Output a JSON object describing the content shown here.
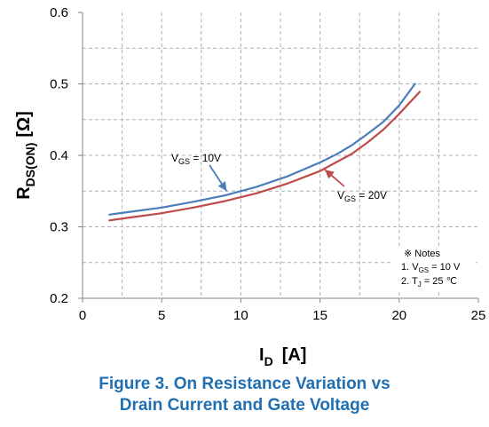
{
  "chart_data": {
    "type": "line",
    "xlim": [
      0,
      25
    ],
    "ylim": [
      0.2,
      0.6
    ],
    "x_ticks": [
      "0",
      "5",
      "10",
      "15",
      "20",
      "25"
    ],
    "y_ticks": [
      "0.2",
      "0.3",
      "0.4",
      "0.5",
      "0.6"
    ],
    "grid": true,
    "xlabel": {
      "main": "I",
      "sub": "D",
      "unit": "[A]"
    },
    "ylabel": {
      "main": "R",
      "sub": "DS(ON)",
      "unit": "[Ω]"
    },
    "series": [
      {
        "name": "VGS = 10V",
        "color": "#4a7ebb",
        "x": [
          1.7,
          3,
          5,
          7,
          9,
          11,
          13,
          15,
          16,
          17,
          18,
          19,
          20,
          21
        ],
        "y": [
          0.317,
          0.321,
          0.327,
          0.335,
          0.344,
          0.356,
          0.371,
          0.39,
          0.401,
          0.414,
          0.43,
          0.447,
          0.47,
          0.5
        ]
      },
      {
        "name": "VGS = 20V",
        "color": "#be4b48",
        "x": [
          1.7,
          3,
          5,
          7,
          9,
          11,
          13,
          15,
          16,
          17,
          18,
          19,
          20,
          21.3
        ],
        "y": [
          0.309,
          0.313,
          0.319,
          0.327,
          0.336,
          0.347,
          0.361,
          0.378,
          0.39,
          0.402,
          0.418,
          0.436,
          0.458,
          0.489
        ]
      }
    ],
    "annotations": [
      {
        "main": "V",
        "sub": "GS",
        "rest": " = 10V",
        "color": "#4a7ebb"
      },
      {
        "main": "V",
        "sub": "GS",
        "rest": " = 20V",
        "color": "#be4b48"
      }
    ],
    "notes": {
      "title": "※ Notes",
      "items": [
        {
          "prefix": "1. V",
          "sub": "GS",
          "rest": " = 10 V"
        },
        {
          "prefix": "2. T",
          "sub": "J",
          "rest": " = 25 ℃"
        }
      ]
    }
  },
  "caption": {
    "line1": "Figure 3. On Resistance Variation vs",
    "line2": "Drain Current and Gate Voltage"
  }
}
